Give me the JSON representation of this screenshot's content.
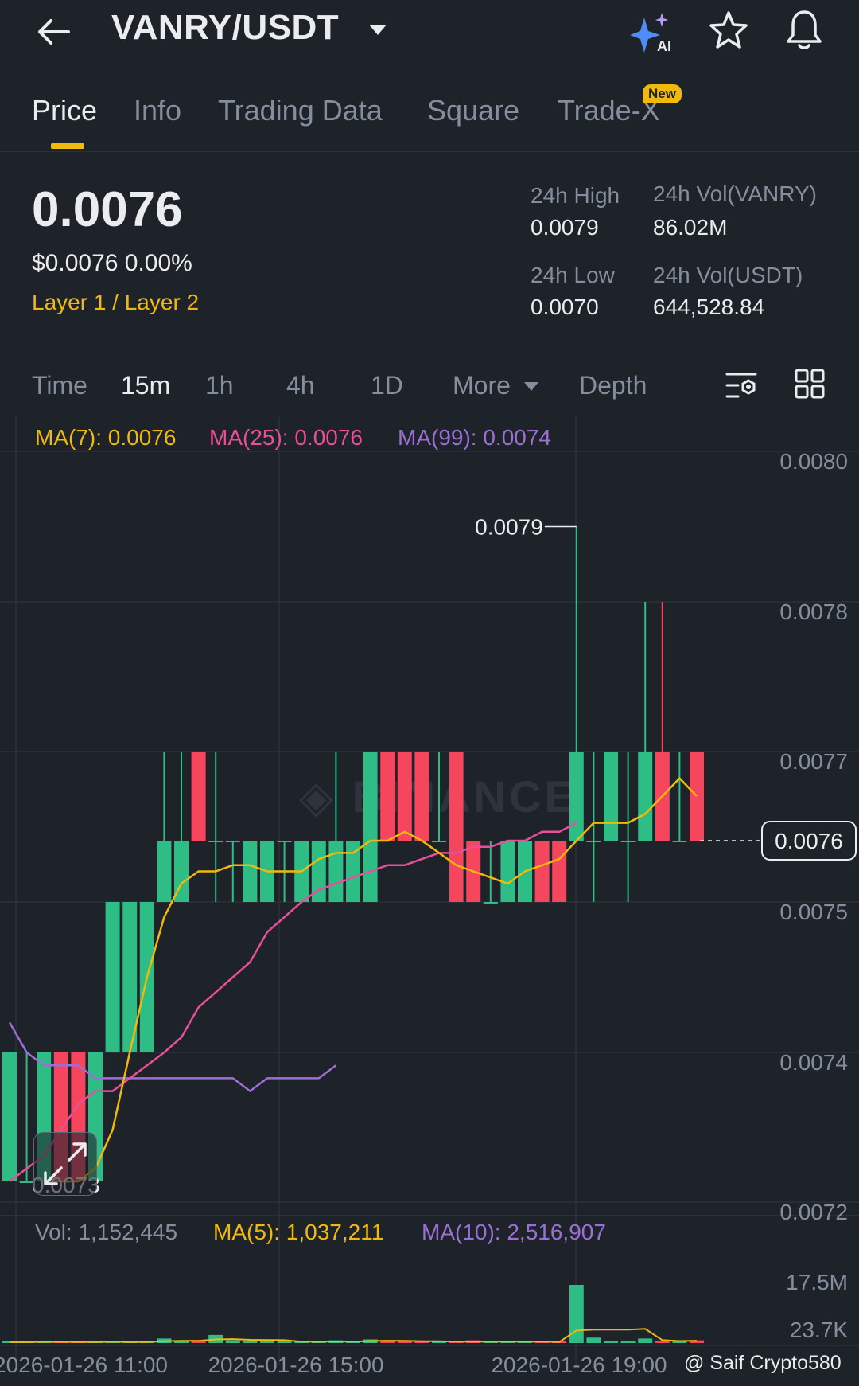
{
  "header": {
    "pair": "VANRY/USDT",
    "ai_label": "AI"
  },
  "tabs": [
    {
      "label": "Price",
      "active": true
    },
    {
      "label": "Info"
    },
    {
      "label": "Trading Data"
    },
    {
      "label": "Square"
    },
    {
      "label": "Trade-X",
      "badge": "New"
    }
  ],
  "summary": {
    "last_price": "0.0076",
    "usd_line": "$0.0076 0.00%",
    "category": "Layer 1 / Layer 2",
    "high_label": "24h High",
    "high_value": "0.0079",
    "low_label": "24h Low",
    "low_value": "0.0070",
    "vol_base_label": "24h Vol(VANRY)",
    "vol_base_value": "86.02M",
    "vol_quote_label": "24h Vol(USDT)",
    "vol_quote_value": "644,528.84"
  },
  "intervals": {
    "items": [
      "Time",
      "15m",
      "1h",
      "4h",
      "1D",
      "More",
      "Depth"
    ],
    "active": "15m"
  },
  "indicators": {
    "ma7": "MA(7): 0.0076",
    "ma25": "MA(25): 0.0076",
    "ma99": "MA(99): 0.0074",
    "vol": "Vol: 1,152,445",
    "vol_ma5": "MA(5): 1,037,211",
    "vol_ma10": "MA(10): 2,516,907"
  },
  "colors": {
    "up": "#2ebd85",
    "down": "#f6465d",
    "ma7": "#f0b90b",
    "ma25": "#e84f9a",
    "ma99": "#9b6fd6",
    "accent": "#f0b90b"
  },
  "chart_data": {
    "type": "candlestick",
    "ylim": [
      0.00715,
      0.00805
    ],
    "y_ticks": [
      "0.0080",
      "0.0078",
      "0.0077",
      "0.0075",
      "0.0074",
      "0.0072"
    ],
    "current_price": "0.0076",
    "max_label": "0.0079",
    "min_label": "0.0073",
    "x_ticks": [
      "2026-01-26 11:00",
      "2026-01-26 15:00",
      "2026-01-26 19:00"
    ],
    "candles": [
      {
        "o": 0.0073,
        "h": 0.0074,
        "l": 0.0073,
        "c": 0.0074
      },
      {
        "o": 0.0073,
        "h": 0.0074,
        "l": 0.0073,
        "c": 0.0073
      },
      {
        "o": 0.0073,
        "h": 0.0074,
        "l": 0.0073,
        "c": 0.0074
      },
      {
        "o": 0.0074,
        "h": 0.0074,
        "l": 0.0073,
        "c": 0.0073
      },
      {
        "o": 0.0074,
        "h": 0.0074,
        "l": 0.0073,
        "c": 0.0073
      },
      {
        "o": 0.0073,
        "h": 0.0074,
        "l": 0.0073,
        "c": 0.0074
      },
      {
        "o": 0.0074,
        "h": 0.0075,
        "l": 0.0074,
        "c": 0.0075
      },
      {
        "o": 0.0074,
        "h": 0.0075,
        "l": 0.0074,
        "c": 0.0075
      },
      {
        "o": 0.0074,
        "h": 0.0075,
        "l": 0.0074,
        "c": 0.0075
      },
      {
        "o": 0.0075,
        "h": 0.0077,
        "l": 0.0075,
        "c": 0.0076
      },
      {
        "o": 0.0075,
        "h": 0.0077,
        "l": 0.0075,
        "c": 0.0076
      },
      {
        "o": 0.0077,
        "h": 0.0077,
        "l": 0.0076,
        "c": 0.0076
      },
      {
        "o": 0.0076,
        "h": 0.0077,
        "l": 0.0075,
        "c": 0.0076
      },
      {
        "o": 0.0076,
        "h": 0.0076,
        "l": 0.0075,
        "c": 0.0076
      },
      {
        "o": 0.0075,
        "h": 0.0076,
        "l": 0.0075,
        "c": 0.0076
      },
      {
        "o": 0.0075,
        "h": 0.0076,
        "l": 0.0075,
        "c": 0.0076
      },
      {
        "o": 0.0076,
        "h": 0.0076,
        "l": 0.0075,
        "c": 0.0076
      },
      {
        "o": 0.0075,
        "h": 0.0076,
        "l": 0.0075,
        "c": 0.0076
      },
      {
        "o": 0.0075,
        "h": 0.0076,
        "l": 0.0075,
        "c": 0.0076
      },
      {
        "o": 0.0075,
        "h": 0.0077,
        "l": 0.0075,
        "c": 0.0076
      },
      {
        "o": 0.0075,
        "h": 0.0076,
        "l": 0.0075,
        "c": 0.0076
      },
      {
        "o": 0.0075,
        "h": 0.0077,
        "l": 0.0075,
        "c": 0.0077
      },
      {
        "o": 0.0077,
        "h": 0.0077,
        "l": 0.0076,
        "c": 0.0076
      },
      {
        "o": 0.0077,
        "h": 0.0077,
        "l": 0.0076,
        "c": 0.0076
      },
      {
        "o": 0.0077,
        "h": 0.0077,
        "l": 0.0076,
        "c": 0.0076
      },
      {
        "o": 0.0076,
        "h": 0.0077,
        "l": 0.0076,
        "c": 0.0076
      },
      {
        "o": 0.0077,
        "h": 0.0077,
        "l": 0.0075,
        "c": 0.0075
      },
      {
        "o": 0.0076,
        "h": 0.0076,
        "l": 0.0075,
        "c": 0.0075
      },
      {
        "o": 0.0075,
        "h": 0.0076,
        "l": 0.0075,
        "c": 0.0075
      },
      {
        "o": 0.0075,
        "h": 0.0076,
        "l": 0.0075,
        "c": 0.0076
      },
      {
        "o": 0.0075,
        "h": 0.0076,
        "l": 0.0075,
        "c": 0.0076
      },
      {
        "o": 0.0076,
        "h": 0.0076,
        "l": 0.0075,
        "c": 0.0075
      },
      {
        "o": 0.0076,
        "h": 0.0076,
        "l": 0.0075,
        "c": 0.0075
      },
      {
        "o": 0.0076,
        "h": 0.0079,
        "l": 0.0076,
        "c": 0.0077
      },
      {
        "o": 0.0076,
        "h": 0.0077,
        "l": 0.0075,
        "c": 0.0076
      },
      {
        "o": 0.0076,
        "h": 0.0077,
        "l": 0.0076,
        "c": 0.0077
      },
      {
        "o": 0.0076,
        "h": 0.0077,
        "l": 0.0075,
        "c": 0.0076
      },
      {
        "o": 0.0076,
        "h": 0.0078,
        "l": 0.0076,
        "c": 0.0077
      },
      {
        "o": 0.0077,
        "h": 0.0078,
        "l": 0.0076,
        "c": 0.0076
      },
      {
        "o": 0.0076,
        "h": 0.0077,
        "l": 0.0076,
        "c": 0.0076
      },
      {
        "o": 0.0077,
        "h": 0.0077,
        "l": 0.0076,
        "c": 0.0076
      }
    ],
    "ma7": [
      0.0073,
      0.0073,
      0.0073,
      0.00731,
      0.00734,
      0.0074,
      0.00745,
      0.00749,
      0.00753,
      0.00755,
      0.00755,
      0.00756,
      0.00756,
      0.00755,
      0.00755,
      0.00755,
      0.00757,
      0.00758,
      0.00758,
      0.0076,
      0.0076,
      0.00761,
      0.0076,
      0.00758,
      0.00756,
      0.00755,
      0.00754,
      0.00753,
      0.00755,
      0.00756,
      0.00757,
      0.0076,
      0.00762,
      0.00762,
      0.00762,
      0.00763,
      0.00765,
      0.00767,
      0.00765
    ],
    "ma25": [
      0.0073,
      0.00731,
      0.00732,
      0.00734,
      0.00736,
      0.00737,
      0.00737,
      0.00738,
      0.00739,
      0.0074,
      0.00741,
      0.00743,
      0.00744,
      0.00745,
      0.00746,
      0.00748,
      0.00749,
      0.0075,
      0.00752,
      0.00753,
      0.00754,
      0.00755,
      0.00756,
      0.00756,
      0.00757,
      0.00758,
      0.00758,
      0.00759,
      0.00759,
      0.0076,
      0.0076,
      0.00761,
      0.00761,
      0.00762
    ],
    "ma99": [
      0.00742,
      0.0074,
      0.00739,
      0.00739,
      0.00739,
      0.00738,
      0.00738,
      0.00738,
      0.00738,
      0.00738,
      0.00738,
      0.00738,
      0.00738,
      0.00738,
      0.00737,
      0.00738,
      0.00738,
      0.00738,
      0.00738,
      0.00739
    ],
    "volume_ticks": [
      "17.5M",
      "23.7K"
    ],
    "volumes": [
      0.1,
      0.1,
      0.2,
      0.1,
      0.1,
      0.1,
      0.2,
      0.1,
      0.1,
      0.5,
      0.3,
      0.2,
      0.9,
      0.3,
      0.1,
      0.2,
      0.1,
      0.1,
      0.2,
      0.3,
      0.1,
      0.4,
      0.3,
      0.1,
      0.1,
      0.1,
      0.2,
      0.3,
      0.1,
      0.1,
      0.1,
      0.2,
      0.1,
      6.5,
      0.6,
      0.1,
      0.2,
      0.5,
      0.2,
      0.1,
      0.3
    ]
  },
  "footer": {
    "credit": "@ Saif Crypto580"
  }
}
